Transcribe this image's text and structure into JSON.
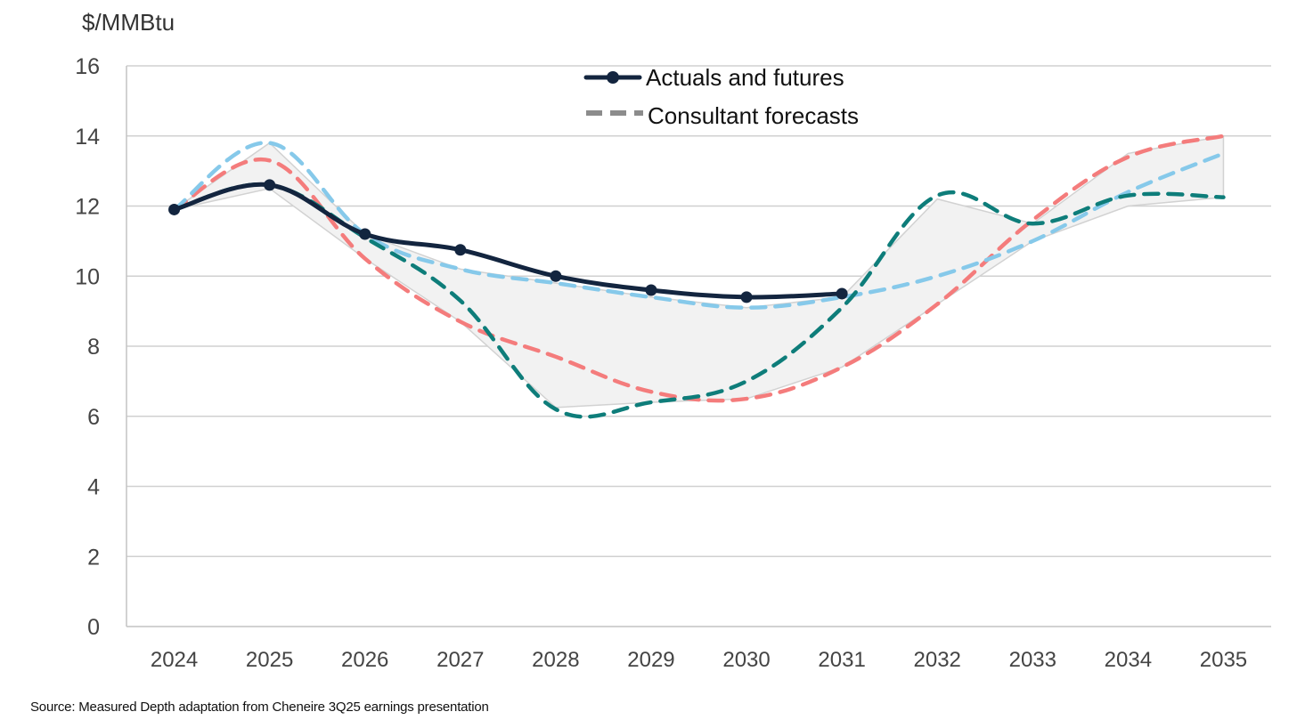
{
  "chart_data": {
    "type": "line",
    "ylabel": "$/MMBtu",
    "ylim": [
      0,
      16
    ],
    "yticks": [
      0,
      2,
      4,
      6,
      8,
      10,
      12,
      14,
      16
    ],
    "categories": [
      "2024",
      "2025",
      "2026",
      "2027",
      "2028",
      "2029",
      "2030",
      "2031",
      "2032",
      "2033",
      "2034",
      "2035"
    ],
    "grid": true,
    "legend": {
      "position": "top-center",
      "entries": [
        {
          "label": "Actuals and futures",
          "style": "solid-marker",
          "color": "#13253f"
        },
        {
          "label": "Consultant forecasts",
          "style": "dashed",
          "color": "#8c8c8c"
        }
      ]
    },
    "series": [
      {
        "name": "Actuals and futures",
        "color": "#13253f",
        "style": "solid",
        "values": [
          11.9,
          12.6,
          11.2,
          10.75,
          10.0,
          9.6,
          9.4,
          9.5,
          null,
          null,
          null,
          null
        ]
      },
      {
        "name": "Consultant forecast (red)",
        "color": "#f47c7c",
        "style": "dashed",
        "values": [
          11.9,
          13.3,
          10.5,
          8.7,
          7.7,
          6.7,
          6.5,
          7.4,
          9.2,
          11.6,
          13.4,
          14.0
        ]
      },
      {
        "name": "Consultant forecast (light blue)",
        "color": "#86c9ea",
        "style": "dashed",
        "values": [
          11.9,
          13.8,
          11.2,
          10.2,
          9.8,
          9.4,
          9.1,
          9.4,
          10.0,
          11.0,
          12.4,
          13.5
        ]
      },
      {
        "name": "Consultant forecast (teal)",
        "color": "#0e7d7a",
        "style": "dashed",
        "values": [
          11.9,
          12.6,
          11.1,
          9.3,
          6.2,
          6.4,
          7.0,
          9.1,
          12.3,
          11.5,
          12.3,
          12.25
        ]
      }
    ],
    "band": {
      "description": "Forecast range (shaded)",
      "color": "#f2f2f2",
      "upper": [
        11.9,
        13.8,
        11.2,
        10.2,
        9.8,
        9.4,
        9.1,
        9.4,
        12.2,
        11.5,
        13.5,
        14.0
      ],
      "lower": [
        11.9,
        12.5,
        10.5,
        8.7,
        6.25,
        6.4,
        6.5,
        7.4,
        9.2,
        11.0,
        12.0,
        12.25
      ]
    }
  },
  "source": "Source: Measured Depth adaptation from Cheneire 3Q25 earnings presentation"
}
